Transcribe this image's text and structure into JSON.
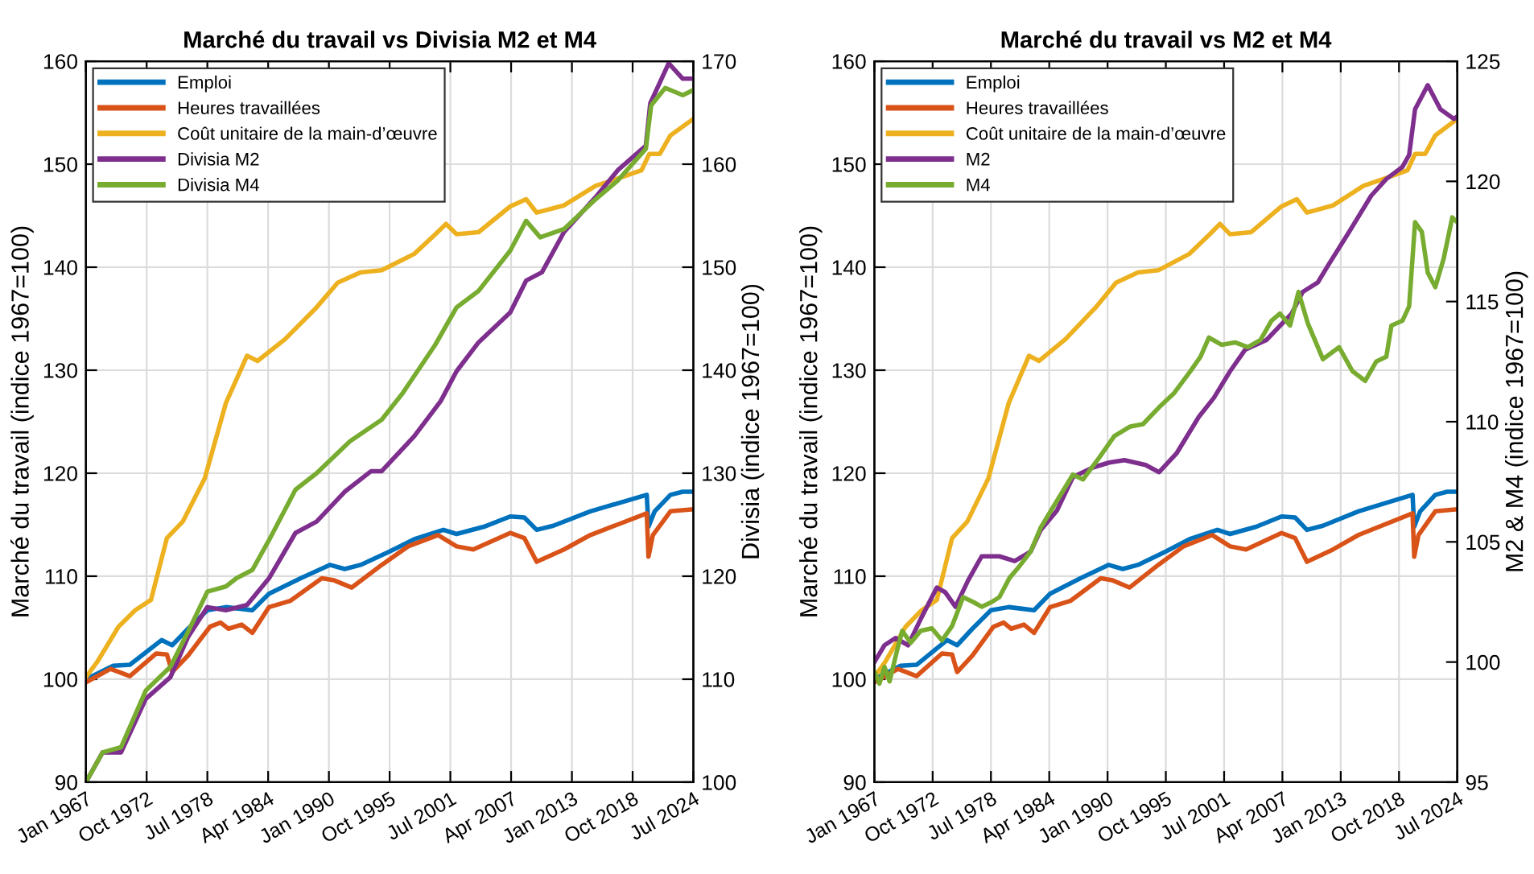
{
  "chart_data": [
    {
      "type": "line",
      "title": "Marché du travail vs Divisia M2 et M4",
      "ylabel": "Marché du travail (indice 1967=100)",
      "y2label": "Divisia (indice 1967=100)",
      "xlim": [
        "1967-01",
        "2024-07"
      ],
      "xticks": [
        {
          "value": "1967-01",
          "label": "Jan 1967"
        },
        {
          "value": "1972-10",
          "label": "Oct 1972"
        },
        {
          "value": "1978-07",
          "label": "Jul 1978"
        },
        {
          "value": "1984-04",
          "label": "Apr 1984"
        },
        {
          "value": "1990-01",
          "label": "Jan 1990"
        },
        {
          "value": "1995-10",
          "label": "Oct 1995"
        },
        {
          "value": "2001-07",
          "label": "Jul 2001"
        },
        {
          "value": "2007-04",
          "label": "Apr 2007"
        },
        {
          "value": "2013-01",
          "label": "Jan 2013"
        },
        {
          "value": "2018-10",
          "label": "Oct 2018"
        },
        {
          "value": "2024-07",
          "label": "Jul 2024"
        }
      ],
      "ylim": [
        90,
        160
      ],
      "yticks": [
        90,
        100,
        110,
        120,
        130,
        140,
        150,
        160
      ],
      "y2lim": [
        100,
        170
      ],
      "y2ticks": [
        100,
        110,
        120,
        130,
        140,
        150,
        160,
        170
      ],
      "grid": true,
      "legend": "top left",
      "series": [
        {
          "name": "Emploi",
          "color": "#0072bd",
          "x": [
            "1967-01",
            "1969-08",
            "1971-03",
            "1974-03",
            "1975-03",
            "1976-09",
            "1978-07",
            "1980-04",
            "1982-10",
            "1984-05",
            "1987-05",
            "1990-02",
            "1991-07",
            "1993-01",
            "1995-10",
            "1998-02",
            "2000-11",
            "2002-02",
            "2004-09",
            "2007-03",
            "2008-07",
            "2009-09",
            "2011-04",
            "2014-10",
            "2020-02",
            "2020-04",
            "2020-11",
            "2022-05",
            "2023-07",
            "2024-07"
          ],
          "values": [
            100.0,
            101.3,
            101.4,
            103.8,
            103.3,
            104.9,
            106.7,
            107.0,
            106.7,
            108.3,
            109.8,
            111.1,
            110.7,
            111.1,
            112.4,
            113.6,
            114.5,
            114.1,
            114.8,
            115.8,
            115.7,
            114.5,
            114.9,
            116.3,
            117.9,
            114.8,
            116.3,
            117.9,
            118.2,
            118.2
          ]
        },
        {
          "name": "Heures travaillées",
          "color": "#d95319",
          "x": [
            "1967-01",
            "1969-05",
            "1971-03",
            "1973-09",
            "1974-09",
            "1975-03",
            "1976-09",
            "1978-10",
            "1979-10",
            "1980-07",
            "1981-10",
            "1982-10",
            "1984-05",
            "1986-05",
            "1989-05",
            "1990-07",
            "1992-03",
            "1995-01",
            "1997-07",
            "2000-05",
            "2002-02",
            "2003-09",
            "2007-03",
            "2008-07",
            "2009-09",
            "2012-04",
            "2014-10",
            "2020-02",
            "2020-04",
            "2020-09",
            "2022-05",
            "2024-07"
          ],
          "values": [
            99.7,
            101.0,
            100.3,
            102.5,
            102.4,
            100.7,
            102.3,
            105.1,
            105.5,
            104.9,
            105.3,
            104.5,
            107.0,
            107.6,
            109.8,
            109.6,
            108.9,
            111.1,
            112.9,
            114.0,
            112.9,
            112.6,
            114.2,
            113.7,
            111.4,
            112.6,
            114.0,
            116.1,
            111.9,
            114.0,
            116.3,
            116.5
          ]
        },
        {
          "name": "Coût unitaire de la main-d’œuvre",
          "color": "#edb120",
          "x": [
            "1967-01",
            "1968-02",
            "1970-02",
            "1971-09",
            "1973-03",
            "1974-09",
            "1976-03",
            "1978-04",
            "1980-04",
            "1982-04",
            "1983-04",
            "1985-11",
            "1988-11",
            "1990-11",
            "1993-01",
            "1995-01",
            "1998-02",
            "2000-02",
            "2001-02",
            "2002-02",
            "2004-03",
            "2007-03",
            "2008-09",
            "2009-09",
            "2012-04",
            "2015-04",
            "2017-05",
            "2019-08",
            "2020-05",
            "2021-05",
            "2022-05",
            "2024-07"
          ],
          "values": [
            100.2,
            101.7,
            105.1,
            106.7,
            107.7,
            113.7,
            115.3,
            119.5,
            126.8,
            131.4,
            130.9,
            133.0,
            136.1,
            138.5,
            139.5,
            139.7,
            141.3,
            143.2,
            144.2,
            143.2,
            143.4,
            145.9,
            146.6,
            145.3,
            146.0,
            147.9,
            148.6,
            149.4,
            151.0,
            151.0,
            152.8,
            154.4
          ]
        },
        {
          "name": "Divisia M2",
          "color": "#7e2f8e",
          "axis": "y2",
          "x": [
            "1967-01",
            "1968-08",
            "1970-05",
            "1972-09",
            "1975-01",
            "1976-09",
            "1978-07",
            "1980-04",
            "1982-04",
            "1984-05",
            "1986-11",
            "1988-11",
            "1991-07",
            "1994-01",
            "1995-01",
            "1998-02",
            "2000-08",
            "2002-02",
            "2004-03",
            "2007-03",
            "2008-09",
            "2010-03",
            "2012-04",
            "2015-04",
            "2017-05",
            "2020-01",
            "2020-06",
            "2022-03",
            "2023-07",
            "2024-07"
          ],
          "values": [
            100.0,
            102.9,
            102.9,
            108.1,
            110.2,
            114.1,
            117.0,
            116.7,
            117.2,
            119.8,
            124.2,
            125.3,
            128.2,
            130.2,
            130.2,
            133.6,
            137.0,
            139.9,
            142.7,
            145.6,
            148.7,
            149.5,
            153.4,
            156.8,
            159.4,
            161.8,
            165.9,
            169.8,
            168.3,
            168.3
          ]
        },
        {
          "name": "Divisia M4",
          "color": "#77ac30",
          "axis": "y2",
          "x": [
            "1967-01",
            "1968-08",
            "1970-05",
            "1972-09",
            "1975-01",
            "1976-09",
            "1978-07",
            "1980-04",
            "1981-04",
            "1982-10",
            "1984-05",
            "1986-11",
            "1988-11",
            "1992-01",
            "1995-01",
            "1997-01",
            "2000-02",
            "2002-02",
            "2004-03",
            "2007-03",
            "2008-09",
            "2010-01",
            "2012-04",
            "2015-04",
            "2017-05",
            "2020-01",
            "2020-07",
            "2021-11",
            "2023-07",
            "2024-07"
          ],
          "values": [
            100.0,
            102.9,
            103.4,
            108.9,
            111.2,
            114.6,
            118.5,
            119.0,
            119.8,
            120.6,
            123.5,
            128.4,
            130.0,
            133.1,
            135.2,
            137.8,
            142.5,
            146.1,
            147.7,
            151.6,
            154.5,
            152.9,
            153.7,
            156.6,
            158.4,
            161.5,
            165.7,
            167.4,
            166.7,
            167.2
          ]
        }
      ]
    },
    {
      "type": "line",
      "title": "Marché du travail vs M2 et M4",
      "ylabel": "Marché du travail (indice 1967=100)",
      "y2label": "M2 & M4 (indice 1967=100)",
      "xlim": [
        "1967-01",
        "2024-07"
      ],
      "xticks": [
        {
          "value": "1967-01",
          "label": "Jan 1967"
        },
        {
          "value": "1972-10",
          "label": "Oct 1972"
        },
        {
          "value": "1978-07",
          "label": "Jul 1978"
        },
        {
          "value": "1984-04",
          "label": "Apr 1984"
        },
        {
          "value": "1990-01",
          "label": "Jan 1990"
        },
        {
          "value": "1995-10",
          "label": "Oct 1995"
        },
        {
          "value": "2001-07",
          "label": "Jul 2001"
        },
        {
          "value": "2007-04",
          "label": "Apr 2007"
        },
        {
          "value": "2013-01",
          "label": "Jan 2013"
        },
        {
          "value": "2018-10",
          "label": "Oct 2018"
        },
        {
          "value": "2024-07",
          "label": "Jul 2024"
        }
      ],
      "ylim": [
        90,
        160
      ],
      "yticks": [
        90,
        100,
        110,
        120,
        130,
        140,
        150,
        160
      ],
      "y2lim": [
        95,
        125
      ],
      "y2ticks": [
        95,
        100,
        105,
        110,
        115,
        120,
        125
      ],
      "grid": true,
      "legend": "top left",
      "series": [
        {
          "name": "Emploi",
          "color": "#0072bd",
          "x": [
            "1967-01",
            "1969-08",
            "1971-03",
            "1974-03",
            "1975-03",
            "1976-09",
            "1978-07",
            "1980-04",
            "1982-10",
            "1984-05",
            "1987-05",
            "1990-02",
            "1991-07",
            "1993-01",
            "1995-10",
            "1998-02",
            "2000-11",
            "2002-02",
            "2004-09",
            "2007-03",
            "2008-07",
            "2009-09",
            "2011-04",
            "2014-10",
            "2020-02",
            "2020-04",
            "2020-11",
            "2022-05",
            "2023-07",
            "2024-07"
          ],
          "values": [
            100.0,
            101.3,
            101.4,
            103.8,
            103.3,
            104.9,
            106.7,
            107.0,
            106.7,
            108.3,
            109.8,
            111.1,
            110.7,
            111.1,
            112.4,
            113.6,
            114.5,
            114.1,
            114.8,
            115.8,
            115.7,
            114.5,
            114.9,
            116.3,
            117.9,
            114.8,
            116.3,
            117.9,
            118.2,
            118.2
          ]
        },
        {
          "name": "Heures travaillées",
          "color": "#d95319",
          "x": [
            "1967-01",
            "1969-05",
            "1971-03",
            "1973-09",
            "1974-09",
            "1975-03",
            "1976-09",
            "1978-10",
            "1979-10",
            "1980-07",
            "1981-10",
            "1982-10",
            "1984-05",
            "1986-05",
            "1989-05",
            "1990-07",
            "1992-03",
            "1995-01",
            "1997-07",
            "2000-05",
            "2002-02",
            "2003-09",
            "2007-03",
            "2008-07",
            "2009-09",
            "2012-04",
            "2014-10",
            "2020-02",
            "2020-04",
            "2020-09",
            "2022-05",
            "2024-07"
          ],
          "values": [
            99.7,
            101.0,
            100.3,
            102.5,
            102.4,
            100.7,
            102.3,
            105.1,
            105.5,
            104.9,
            105.3,
            104.5,
            107.0,
            107.6,
            109.8,
            109.6,
            108.9,
            111.1,
            112.9,
            114.0,
            112.9,
            112.6,
            114.2,
            113.7,
            111.4,
            112.6,
            114.0,
            116.1,
            111.9,
            114.0,
            116.3,
            116.5
          ]
        },
        {
          "name": "Coût unitaire de la main-d’œuvre",
          "color": "#edb120",
          "x": [
            "1967-01",
            "1968-02",
            "1970-02",
            "1971-09",
            "1973-03",
            "1974-09",
            "1976-03",
            "1978-04",
            "1980-04",
            "1982-04",
            "1983-04",
            "1985-11",
            "1988-11",
            "1990-11",
            "1993-01",
            "1995-01",
            "1998-02",
            "2000-02",
            "2001-02",
            "2002-02",
            "2004-03",
            "2007-03",
            "2008-09",
            "2009-09",
            "2012-04",
            "2015-04",
            "2017-05",
            "2019-08",
            "2020-05",
            "2021-05",
            "2022-05",
            "2024-07"
          ],
          "values": [
            100.2,
            101.7,
            105.1,
            106.7,
            107.7,
            113.7,
            115.3,
            119.5,
            126.8,
            131.4,
            130.9,
            133.0,
            136.1,
            138.5,
            139.5,
            139.7,
            141.3,
            143.2,
            144.2,
            143.2,
            143.4,
            145.9,
            146.6,
            145.3,
            146.0,
            147.9,
            148.6,
            149.4,
            151.0,
            151.0,
            152.8,
            154.4
          ]
        },
        {
          "name": "M2",
          "color": "#7e2f8e",
          "axis": "y2",
          "x": [
            "1967-01",
            "1968-01",
            "1969-02",
            "1970-05",
            "1971-08",
            "1973-03",
            "1974-01",
            "1975-01",
            "1976-04",
            "1977-08",
            "1979-05",
            "1980-11",
            "1982-06",
            "1983-06",
            "1985-01",
            "1986-08",
            "1988-08",
            "1990-03",
            "1991-09",
            "1993-10",
            "1995-02",
            "1996-11",
            "1999-01",
            "2000-07",
            "2002-02",
            "2003-08",
            "2005-09",
            "2008-03",
            "2009-04",
            "2010-10",
            "2011-10",
            "2013-11",
            "2016-01",
            "2017-07",
            "2019-02",
            "2019-10",
            "2020-05",
            "2021-08",
            "2022-11",
            "2024-03",
            "2024-07"
          ],
          "values": [
            100.0,
            100.7,
            101.0,
            100.7,
            101.8,
            103.1,
            102.9,
            102.3,
            103.4,
            104.4,
            104.4,
            104.2,
            104.6,
            105.5,
            106.3,
            107.7,
            108.1,
            108.3,
            108.4,
            108.2,
            107.9,
            108.7,
            110.2,
            111.0,
            112.1,
            113.0,
            113.4,
            114.5,
            115.4,
            115.8,
            116.5,
            117.9,
            119.4,
            120.1,
            120.6,
            121.1,
            123.0,
            124.0,
            123.0,
            122.6,
            122.7
          ]
        },
        {
          "name": "M4",
          "color": "#77ac30",
          "axis": "y2",
          "x": [
            "1967-01",
            "1967-07",
            "1968-01",
            "1968-07",
            "1969-04",
            "1969-10",
            "1970-08",
            "1971-08",
            "1972-09",
            "1973-09",
            "1974-09",
            "1975-10",
            "1976-10",
            "1977-08",
            "1978-08",
            "1979-05",
            "1980-05",
            "1981-05",
            "1982-06",
            "1983-06",
            "1985-01",
            "1986-08",
            "1987-08",
            "1989-03",
            "1990-09",
            "1992-04",
            "1993-07",
            "1995-02",
            "1996-08",
            "1998-03",
            "1999-03",
            "2000-01",
            "2001-04",
            "2002-08",
            "2003-11",
            "2005-02",
            "2006-03",
            "2007-01",
            "2008-01",
            "2008-11",
            "2009-10",
            "2011-04",
            "2012-11",
            "2014-03",
            "2015-06",
            "2016-07",
            "2017-07",
            "2018-01",
            "2019-02",
            "2019-10",
            "2020-05",
            "2021-01",
            "2021-08",
            "2022-05",
            "2023-03",
            "2024-01",
            "2024-07"
          ],
          "values": [
            99.6,
            99.1,
            99.8,
            99.2,
            100.5,
            101.3,
            100.8,
            101.3,
            101.4,
            100.9,
            101.5,
            102.7,
            102.5,
            102.3,
            102.5,
            102.7,
            103.5,
            104.0,
            104.6,
            105.6,
            106.7,
            107.8,
            107.6,
            108.5,
            109.4,
            109.8,
            109.9,
            110.6,
            111.2,
            112.1,
            112.7,
            113.5,
            113.2,
            113.3,
            113.1,
            113.4,
            114.2,
            114.5,
            114.0,
            115.4,
            114.1,
            112.6,
            113.1,
            112.1,
            111.7,
            112.5,
            112.7,
            114.0,
            114.2,
            114.8,
            118.3,
            117.9,
            116.2,
            115.6,
            116.8,
            118.5,
            118.3
          ]
        }
      ]
    }
  ]
}
